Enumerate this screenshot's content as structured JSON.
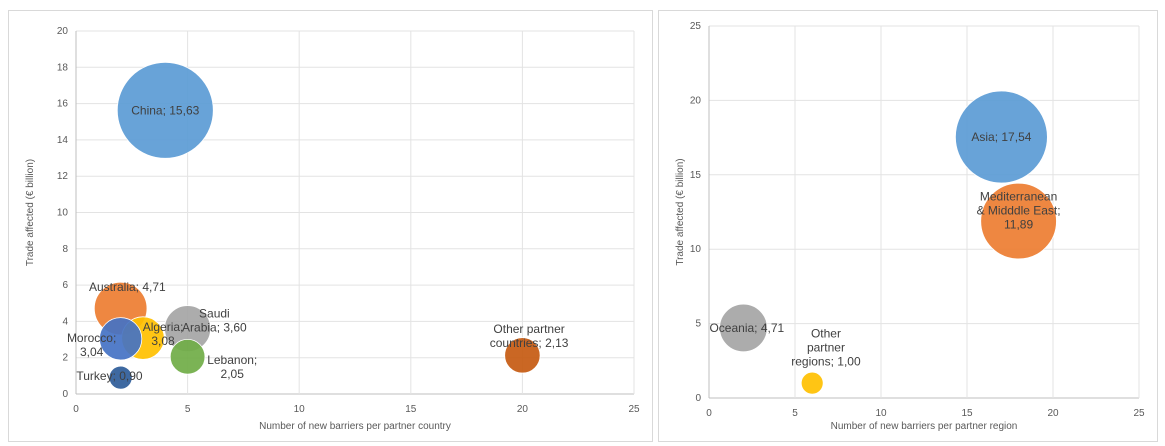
{
  "chart_data": [
    {
      "type": "bubble",
      "xlabel": "Number of new barriers per partner country",
      "ylabel": "Trade affected (€ billion)",
      "xlim": [
        0,
        25
      ],
      "ylim": [
        0,
        20
      ],
      "xticks": [
        "0",
        "5",
        "10",
        "15",
        "20",
        "25"
      ],
      "yticks": [
        "0",
        "2",
        "4",
        "6",
        "8",
        "10",
        "12",
        "14",
        "16",
        "18",
        "20"
      ],
      "grid": true,
      "points": [
        {
          "label": [
            "China; 15,63"
          ],
          "x": 4,
          "y": 15.63,
          "size": 15.63,
          "color": "#5B9BD5"
        },
        {
          "label": [
            "Australia;  4,71"
          ],
          "x": 2,
          "y": 4.71,
          "size": 4.71,
          "color": "#ED7D31"
        },
        {
          "label": [
            "Saudi",
            "Arabia;  3,60"
          ],
          "x": 5,
          "y": 3.6,
          "size": 3.6,
          "color": "#A5A5A5"
        },
        {
          "label": [
            "Algeria;",
            "3,08"
          ],
          "x": 3,
          "y": 3.08,
          "size": 3.08,
          "color": "#FFC000"
        },
        {
          "label": [
            "Morocco;",
            "3,04"
          ],
          "x": 2,
          "y": 3.04,
          "size": 3.04,
          "color": "#4472C4"
        },
        {
          "label": [
            "Lebanon;",
            "2,05"
          ],
          "x": 5,
          "y": 2.05,
          "size": 2.05,
          "color": "#70AD47"
        },
        {
          "label": [
            "Other partner",
            "countries; 2,13"
          ],
          "x": 20,
          "y": 2.13,
          "size": 2.13,
          "color": "#C55A11"
        },
        {
          "label": [
            "Turkey;  0,90"
          ],
          "x": 2,
          "y": 0.9,
          "size": 0.9,
          "color": "#2E5C99"
        }
      ]
    },
    {
      "type": "bubble",
      "xlabel": "Number of new barriers per partner region",
      "ylabel": "Trade affected (€ billion)",
      "xlim": [
        0,
        25
      ],
      "ylim": [
        0,
        25
      ],
      "xticks": [
        "0",
        "5",
        "10",
        "15",
        "20",
        "25"
      ],
      "yticks": [
        "0",
        "5",
        "10",
        "15",
        "20",
        "25"
      ],
      "grid": true,
      "points": [
        {
          "label": [
            "Asia;  17,54"
          ],
          "x": 17,
          "y": 17.54,
          "size": 17.54,
          "color": "#5B9BD5"
        },
        {
          "label": [
            "Mediterranean",
            "& Midddle East;",
            "11,89"
          ],
          "x": 18,
          "y": 11.89,
          "size": 11.89,
          "color": "#ED7D31"
        },
        {
          "label": [
            "Oceania; 4,71"
          ],
          "x": 2,
          "y": 4.71,
          "size": 4.71,
          "color": "#A5A5A5"
        },
        {
          "label": [
            "Other",
            "partner",
            "regions; 1,00"
          ],
          "x": 6,
          "y": 1.0,
          "size": 1.0,
          "color": "#FFC000"
        }
      ]
    }
  ]
}
